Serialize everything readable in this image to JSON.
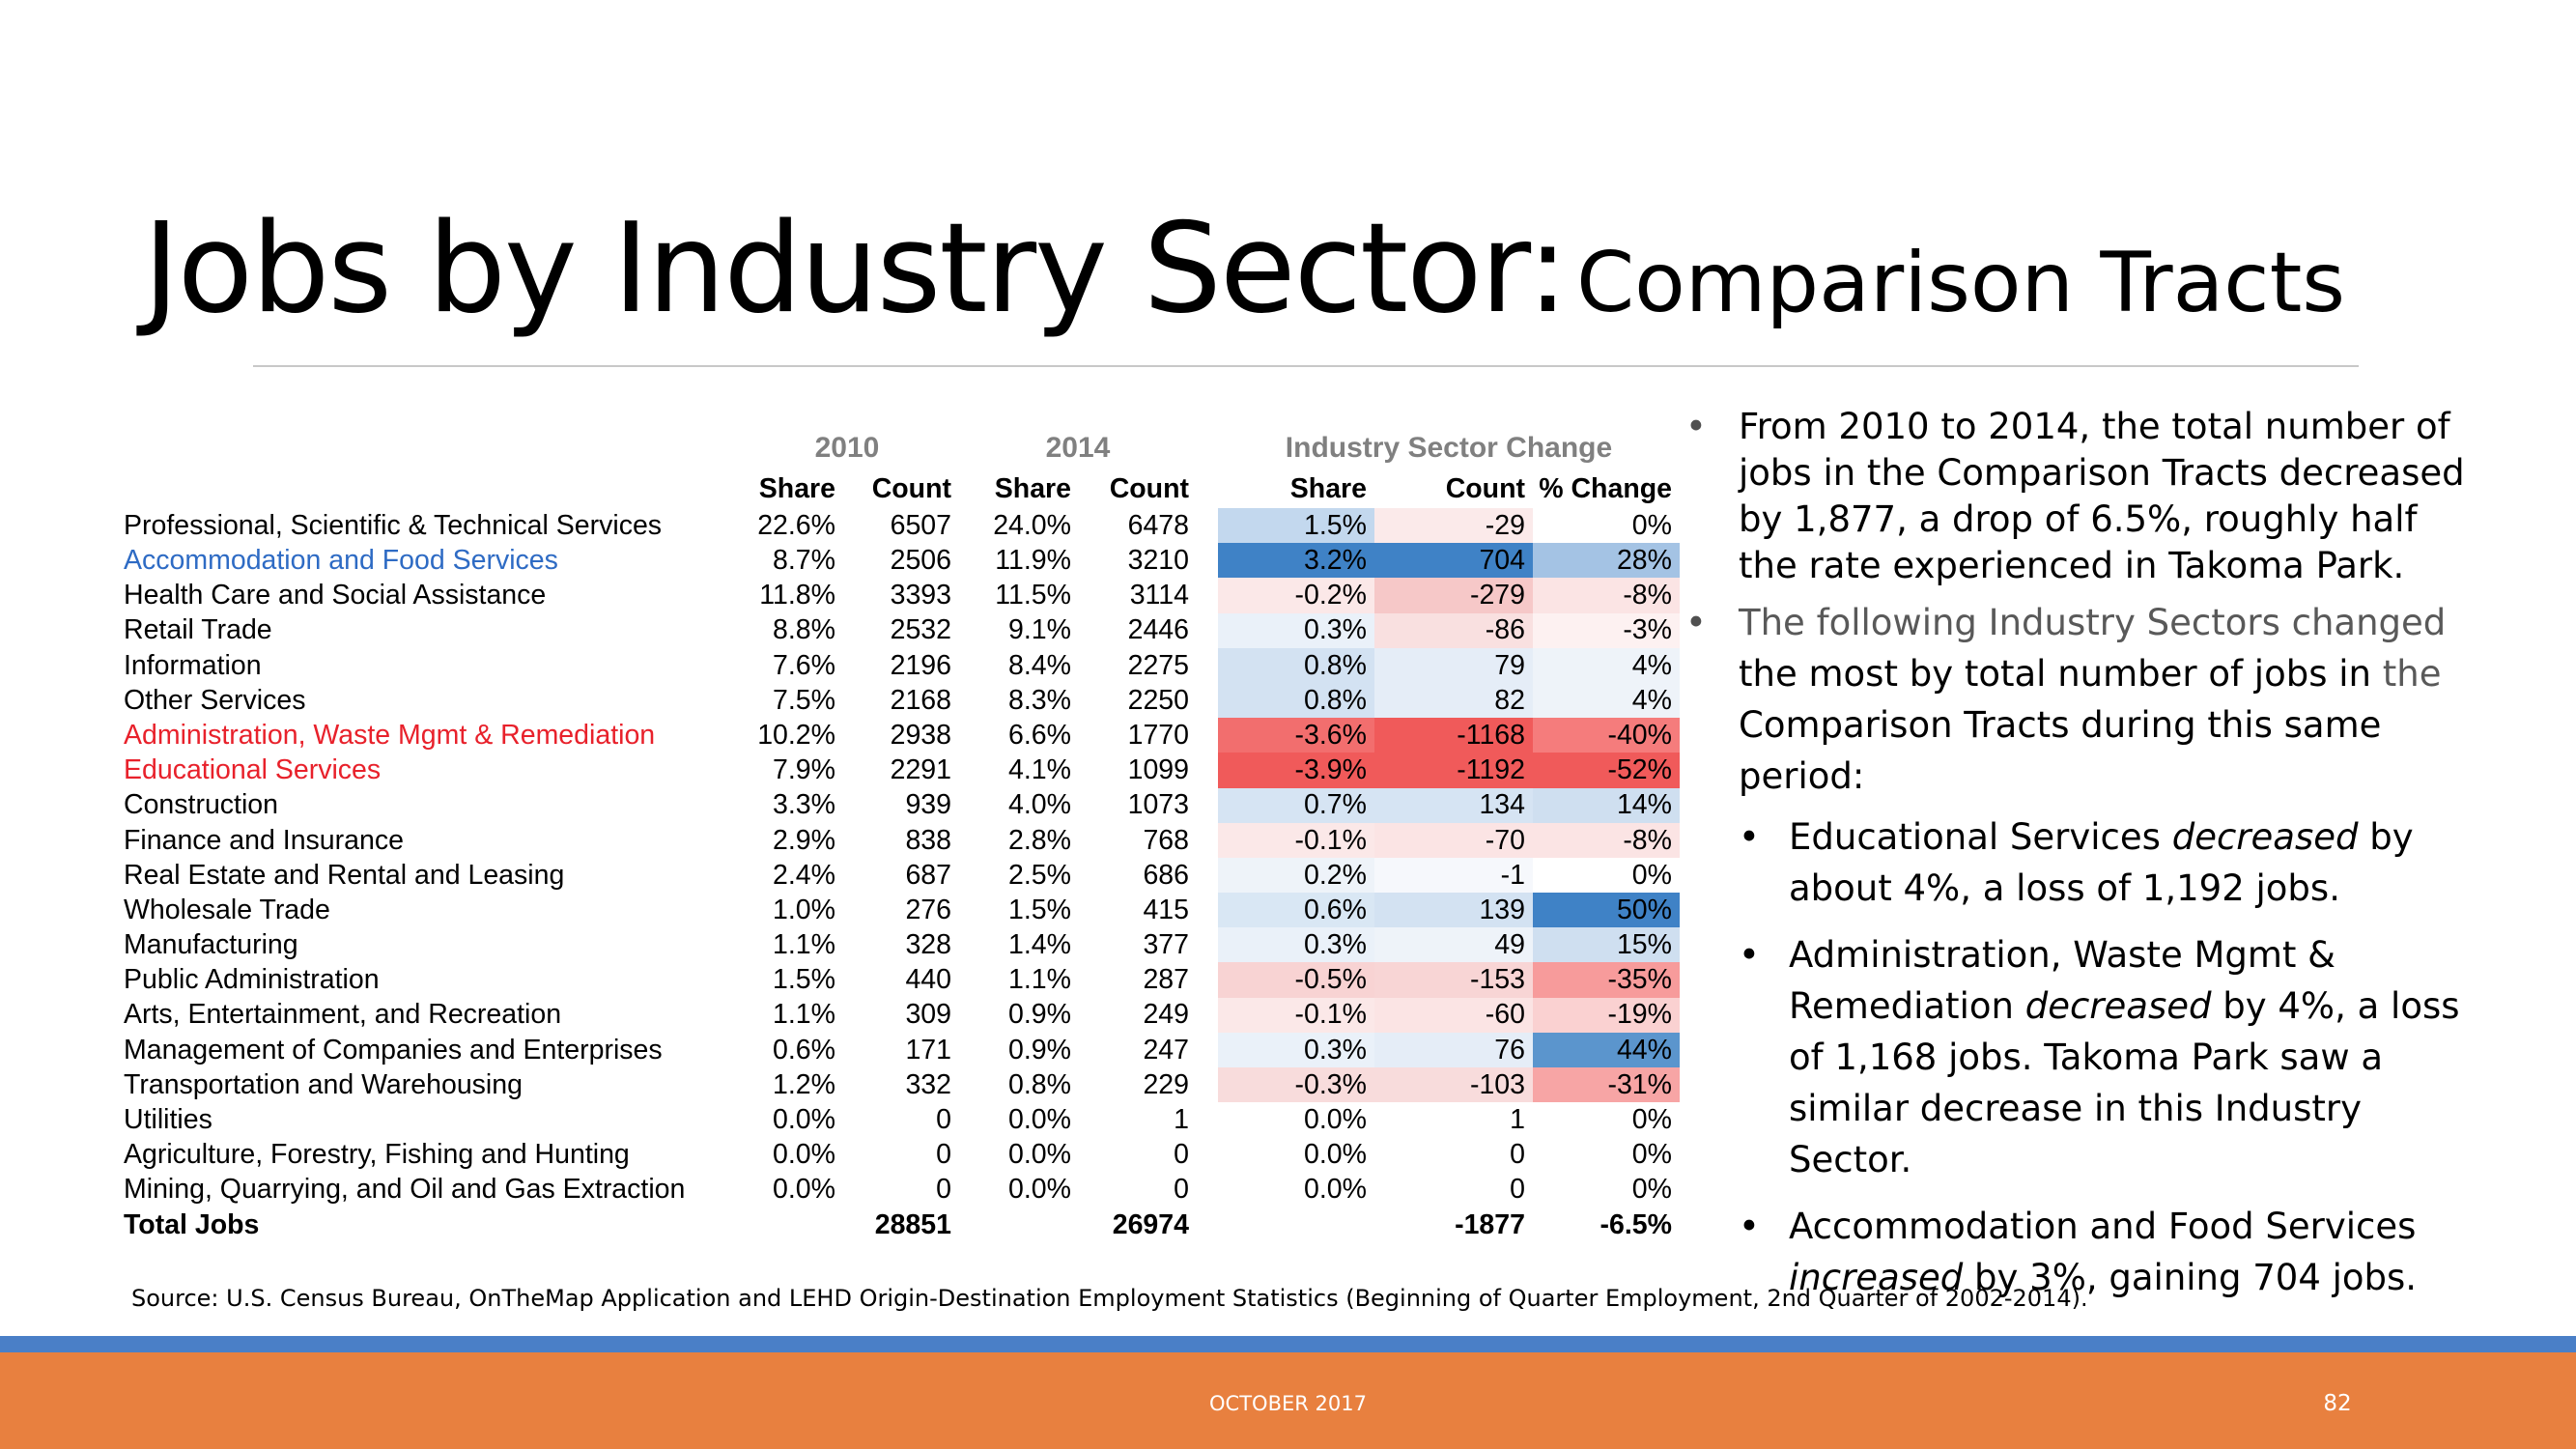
{
  "title": {
    "main": "Jobs by Industry Sector:",
    "sub": "Comparison Tracts"
  },
  "table": {
    "year_headers": [
      "2010",
      "2014",
      "Industry Sector Change"
    ],
    "column_headers": [
      "Share",
      "Count",
      "Share",
      "Count",
      "Share",
      "Count",
      "% Change"
    ],
    "rows": [
      [
        "Professional, Scientific & Technical Services",
        "22.6%",
        "6507",
        "24.0%",
        "6478",
        "1.5%",
        "-29",
        "0%"
      ],
      [
        "Accommodation and Food Services",
        "8.7%",
        "2506",
        "11.9%",
        "3210",
        "3.2%",
        "704",
        "28%"
      ],
      [
        "Health Care and Social Assistance",
        "11.8%",
        "3393",
        "11.5%",
        "3114",
        "-0.2%",
        "-279",
        "-8%"
      ],
      [
        "Retail Trade",
        "8.8%",
        "2532",
        "9.1%",
        "2446",
        "0.3%",
        "-86",
        "-3%"
      ],
      [
        "Information",
        "7.6%",
        "2196",
        "8.4%",
        "2275",
        "0.8%",
        "79",
        "4%"
      ],
      [
        "Other Services",
        "7.5%",
        "2168",
        "8.3%",
        "2250",
        "0.8%",
        "82",
        "4%"
      ],
      [
        "Administration, Waste Mgmt & Remediation",
        "10.2%",
        "2938",
        "6.6%",
        "1770",
        "-3.6%",
        "-1168",
        "-40%"
      ],
      [
        "Educational Services",
        "7.9%",
        "2291",
        "4.1%",
        "1099",
        "-3.9%",
        "-1192",
        "-52%"
      ],
      [
        "Construction",
        "3.3%",
        "939",
        "4.0%",
        "1073",
        "0.7%",
        "134",
        "14%"
      ],
      [
        "Finance and Insurance",
        "2.9%",
        "838",
        "2.8%",
        "768",
        "-0.1%",
        "-70",
        "-8%"
      ],
      [
        "Real Estate and Rental and Leasing",
        "2.4%",
        "687",
        "2.5%",
        "686",
        "0.2%",
        "-1",
        "0%"
      ],
      [
        "Wholesale Trade",
        "1.0%",
        "276",
        "1.5%",
        "415",
        "0.6%",
        "139",
        "50%"
      ],
      [
        "Manufacturing",
        "1.1%",
        "328",
        "1.4%",
        "377",
        "0.3%",
        "49",
        "15%"
      ],
      [
        "Public Administration",
        "1.5%",
        "440",
        "1.1%",
        "287",
        "-0.5%",
        "-153",
        "-35%"
      ],
      [
        "Arts, Entertainment, and Recreation",
        "1.1%",
        "309",
        "0.9%",
        "249",
        "-0.1%",
        "-60",
        "-19%"
      ],
      [
        "Management of Companies and Enterprises",
        "0.6%",
        "171",
        "0.9%",
        "247",
        "0.3%",
        "76",
        "44%"
      ],
      [
        "Transportation and Warehousing",
        "1.2%",
        "332",
        "0.8%",
        "229",
        "-0.3%",
        "-103",
        "-31%"
      ],
      [
        "Utilities",
        "0.0%",
        "0",
        "0.0%",
        "1",
        "0.0%",
        "1",
        "0%"
      ],
      [
        "Agriculture, Forestry, Fishing and Hunting",
        "0.0%",
        "0",
        "0.0%",
        "0",
        "0.0%",
        "0",
        "0%"
      ],
      [
        "Mining, Quarrying, and Oil and Gas Extraction",
        "0.0%",
        "0",
        "0.0%",
        "0",
        "0.0%",
        "0",
        "0%"
      ]
    ],
    "row_label_colors": {
      "Accommodation and Food Services": "#2e6bc4",
      "Administration, Waste Mgmt & Remediation": "#e8212b",
      "Educational Services": "#e8212b"
    },
    "cell_colors": {
      "share": [
        "#c3d8ee",
        "#3f82c6",
        "#fbe8e8",
        "#eaf1f9",
        "#d3e2f2",
        "#d3e2f2",
        "#f26e6e",
        "#f05a5a",
        "#d6e4f3",
        "#fbe8e8",
        "#eef3f9",
        "#d9e7f4",
        "#eaf1f9",
        "#f8d3d3",
        "#fbe8e8",
        "#eaf1f9",
        "#f8dcdc",
        "#ffffff",
        "#ffffff",
        "#ffffff"
      ],
      "count": [
        "#fbeaea",
        "#3f82c6",
        "#f6c8c8",
        "#f9e0e0",
        "#e5edf7",
        "#e5edf7",
        "#f05a5a",
        "#f05a5a",
        "#d6e4f3",
        "#fbe4e4",
        "#f6f8fc",
        "#d3e2f2",
        "#eef3f9",
        "#f8d5d5",
        "#fbe4e4",
        "#e5edf7",
        "#f8dcdc",
        "#ffffff",
        "#ffffff",
        "#ffffff"
      ],
      "pct": [
        "#ffffff",
        "#a4c3e4",
        "#fbe4e4",
        "#fdf1f1",
        "#eef3f9",
        "#eef3f9",
        "#f57c7c",
        "#f05a5a",
        "#cfdff0",
        "#fbe4e4",
        "#ffffff",
        "#3f82c6",
        "#cfdff0",
        "#f79b9b",
        "#fad1d1",
        "#5b95cd",
        "#f7a5a5",
        "#ffffff",
        "#ffffff",
        "#ffffff"
      ]
    },
    "total": {
      "label": "Total Jobs",
      "count_2010": "28851",
      "count_2014": "26974",
      "change_count": "-1877",
      "change_pct": "-6.5%"
    }
  },
  "bullets": {
    "b1": "From 2010 to 2014, the total number of jobs in the Comparison Tracts decreased by 1,877, a drop of 6.5%, roughly half the rate experienced in Takoma Park.",
    "b2_part1": "The following Industry Sectors changed",
    "b2_part2": "the most by total number of jobs in",
    "b2_part3": "the",
    "b2_part4": "Comparison Tracts during this same period:",
    "s1_a": "Educational Services ",
    "s1_b": "decreased",
    "s1_c": " by about 4%, a loss  of 1,192 jobs.",
    "s2_a": "Administration, Waste Mgmt & Remediation ",
    "s2_b": "decreased",
    "s2_c": " by 4%, a loss of 1,168 jobs. Takoma Park saw a similar decrease in this Industry Sector.",
    "s3_a": "Accommodation and Food Services ",
    "s3_b": "increased",
    "s3_c": " by 3%, gaining 704 jobs."
  },
  "source": "Source: U.S. Census Bureau, OnTheMap Application and LEHD Origin-Destination Employment Statistics (Beginning of Quarter Employment, 2nd Quarter of 2002-2014).",
  "footer": {
    "date": "OCTOBER 2017",
    "page": "82"
  },
  "colors": {
    "footer_orange": "#e8803f",
    "footer_blue": "#4a7fc7",
    "header_gray": "#808080"
  }
}
